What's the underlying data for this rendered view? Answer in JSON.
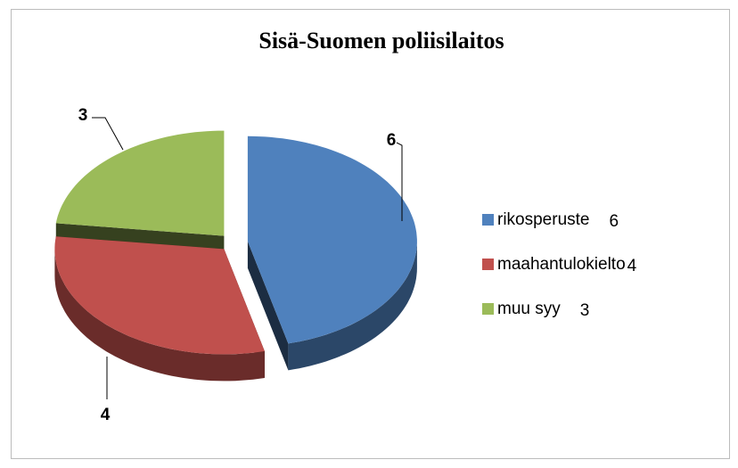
{
  "chart_data": {
    "type": "pie",
    "title": "Sisä-Suomen poliisilaitos",
    "categories": [
      "rikosperuste",
      "maahantulokielto",
      "muu syy"
    ],
    "values": [
      6,
      4,
      3
    ],
    "colors": [
      "#4f81bd",
      "#c0504d",
      "#9bbb59"
    ],
    "legend": "right"
  }
}
